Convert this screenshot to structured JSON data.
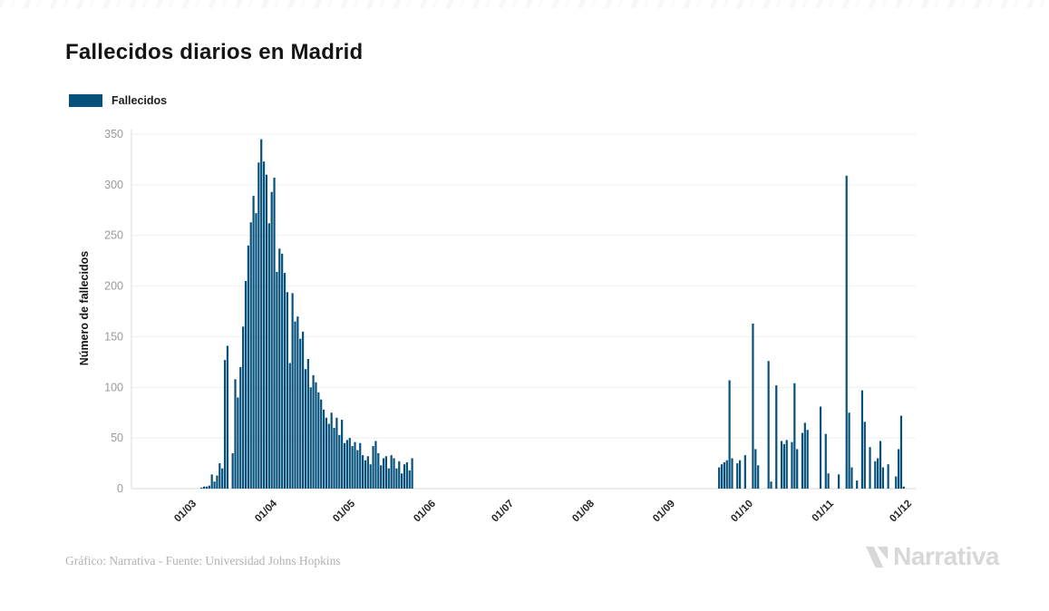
{
  "header": {
    "title": "Fallecidos diarios en Madrid"
  },
  "legend": {
    "label": "Fallecidos",
    "swatch_color": "#05517C"
  },
  "footer": {
    "credit": "Gráfico: Narrativa - Fuente: Universidad Johns Hopkins",
    "brand_text": "Narrativa"
  },
  "colors": {
    "bar": "#05517C",
    "grid": "#efefef",
    "axis": "#d8d8d8",
    "y_tick_text": "#9a9a9a",
    "x_tick_text": "#262626",
    "title_text": "#151515"
  },
  "chart_data": {
    "type": "bar",
    "title": "Fallecidos diarios en Madrid",
    "xlabel": "",
    "ylabel": "Número de fallecidos",
    "ylim": [
      0,
      350
    ],
    "y_ticks": [
      0,
      50,
      100,
      150,
      200,
      250,
      300,
      350
    ],
    "x_ticks": [
      {
        "label": "01/03",
        "day": 0
      },
      {
        "label": "01/04",
        "day": 31
      },
      {
        "label": "01/05",
        "day": 61
      },
      {
        "label": "01/06",
        "day": 92
      },
      {
        "label": "01/07",
        "day": 122
      },
      {
        "label": "01/08",
        "day": 153
      },
      {
        "label": "01/09",
        "day": 184
      },
      {
        "label": "01/10",
        "day": 214
      },
      {
        "label": "01/11",
        "day": 245
      },
      {
        "label": "01/12",
        "day": 275
      }
    ],
    "grid": true,
    "legend_position": "top-left",
    "series": [
      {
        "name": "Fallecidos",
        "color": "#05517C",
        "points": [
          [
            "07/03",
            1
          ],
          [
            "08/03",
            2
          ],
          [
            "09/03",
            2
          ],
          [
            "10/03",
            3
          ],
          [
            "11/03",
            14
          ],
          [
            "12/03",
            7
          ],
          [
            "13/03",
            13
          ],
          [
            "14/03",
            25
          ],
          [
            "15/03",
            20
          ],
          [
            "16/03",
            127
          ],
          [
            "17/03",
            141
          ],
          [
            "18/03",
            0
          ],
          [
            "19/03",
            35
          ],
          [
            "20/03",
            108
          ],
          [
            "21/03",
            90
          ],
          [
            "22/03",
            120
          ],
          [
            "23/03",
            160
          ],
          [
            "24/03",
            205
          ],
          [
            "25/03",
            240
          ],
          [
            "26/03",
            263
          ],
          [
            "27/03",
            289
          ],
          [
            "28/03",
            272
          ],
          [
            "29/03",
            322
          ],
          [
            "30/03",
            345
          ],
          [
            "31/03",
            323
          ],
          [
            "01/04",
            310
          ],
          [
            "02/04",
            262
          ],
          [
            "03/04",
            293
          ],
          [
            "04/04",
            307
          ],
          [
            "05/04",
            214
          ],
          [
            "06/04",
            237
          ],
          [
            "07/04",
            232
          ],
          [
            "08/04",
            213
          ],
          [
            "09/04",
            194
          ],
          [
            "10/04",
            124
          ],
          [
            "11/04",
            193
          ],
          [
            "12/04",
            165
          ],
          [
            "13/04",
            170
          ],
          [
            "14/04",
            148
          ],
          [
            "15/04",
            155
          ],
          [
            "16/04",
            118
          ],
          [
            "17/04",
            128
          ],
          [
            "18/04",
            100
          ],
          [
            "19/04",
            112
          ],
          [
            "20/04",
            105
          ],
          [
            "21/04",
            95
          ],
          [
            "22/04",
            88
          ],
          [
            "23/04",
            78
          ],
          [
            "24/04",
            70
          ],
          [
            "25/04",
            64
          ],
          [
            "26/04",
            75
          ],
          [
            "27/04",
            60
          ],
          [
            "28/04",
            70
          ],
          [
            "29/04",
            53
          ],
          [
            "30/04",
            68
          ],
          [
            "01/05",
            45
          ],
          [
            "02/05",
            48
          ],
          [
            "03/05",
            50
          ],
          [
            "04/05",
            42
          ],
          [
            "05/05",
            46
          ],
          [
            "06/05",
            38
          ],
          [
            "07/05",
            45
          ],
          [
            "08/05",
            33
          ],
          [
            "09/05",
            28
          ],
          [
            "10/05",
            32
          ],
          [
            "11/05",
            24
          ],
          [
            "12/05",
            42
          ],
          [
            "13/05",
            47
          ],
          [
            "14/05",
            35
          ],
          [
            "15/05",
            23
          ],
          [
            "16/05",
            30
          ],
          [
            "17/05",
            32
          ],
          [
            "18/05",
            20
          ],
          [
            "19/05",
            33
          ],
          [
            "20/05",
            30
          ],
          [
            "21/05",
            20
          ],
          [
            "22/05",
            27
          ],
          [
            "23/05",
            15
          ],
          [
            "24/05",
            24
          ],
          [
            "25/05",
            26
          ],
          [
            "26/05",
            18
          ],
          [
            "27/05",
            30
          ],
          [
            "22/09",
            21
          ],
          [
            "23/09",
            24
          ],
          [
            "24/09",
            26
          ],
          [
            "25/09",
            28
          ],
          [
            "26/09",
            107
          ],
          [
            "27/09",
            30
          ],
          [
            "29/09",
            25
          ],
          [
            "30/09",
            28
          ],
          [
            "02/10",
            33
          ],
          [
            "05/10",
            163
          ],
          [
            "06/10",
            39
          ],
          [
            "07/10",
            23
          ],
          [
            "11/10",
            126
          ],
          [
            "12/10",
            7
          ],
          [
            "14/10",
            102
          ],
          [
            "16/10",
            47
          ],
          [
            "17/10",
            44
          ],
          [
            "18/10",
            48
          ],
          [
            "20/10",
            46
          ],
          [
            "21/10",
            104
          ],
          [
            "22/10",
            39
          ],
          [
            "24/10",
            55
          ],
          [
            "25/10",
            65
          ],
          [
            "26/10",
            58
          ],
          [
            "31/10",
            81
          ],
          [
            "02/11",
            54
          ],
          [
            "03/11",
            15
          ],
          [
            "07/11",
            14
          ],
          [
            "10/11",
            309
          ],
          [
            "11/11",
            75
          ],
          [
            "12/11",
            21
          ],
          [
            "14/11",
            8
          ],
          [
            "16/11",
            97
          ],
          [
            "17/11",
            66
          ],
          [
            "19/11",
            41
          ],
          [
            "21/11",
            27
          ],
          [
            "22/11",
            30
          ],
          [
            "23/11",
            47
          ],
          [
            "24/11",
            21
          ],
          [
            "26/11",
            24
          ],
          [
            "29/11",
            12
          ],
          [
            "30/11",
            39
          ],
          [
            "01/12",
            72
          ],
          [
            "02/12",
            2
          ]
        ]
      }
    ]
  }
}
